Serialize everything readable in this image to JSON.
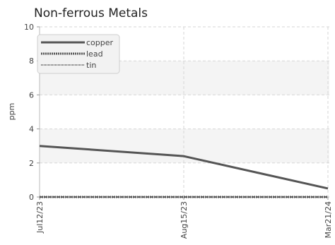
{
  "chart_data": {
    "type": "line",
    "title": "Non-ferrous Metals",
    "xlabel": "",
    "ylabel": "ppm",
    "x": [
      "Jul12/23",
      "Aug15/23",
      "Mar21/24"
    ],
    "ylim": [
      0,
      10
    ],
    "yticks": [
      "0",
      "2",
      "4",
      "6",
      "8",
      "10"
    ],
    "grid": true,
    "legend": "top-left",
    "series": [
      {
        "name": "copper",
        "values": [
          3.0,
          2.4,
          0.5
        ],
        "color": "#555555",
        "style": "solid"
      },
      {
        "name": "lead",
        "values": [
          0,
          0,
          0
        ],
        "color": "#555555",
        "style": "dotted-bold"
      },
      {
        "name": "tin",
        "values": [
          0,
          0,
          0
        ],
        "color": "#666666",
        "style": "dotted"
      }
    ]
  }
}
